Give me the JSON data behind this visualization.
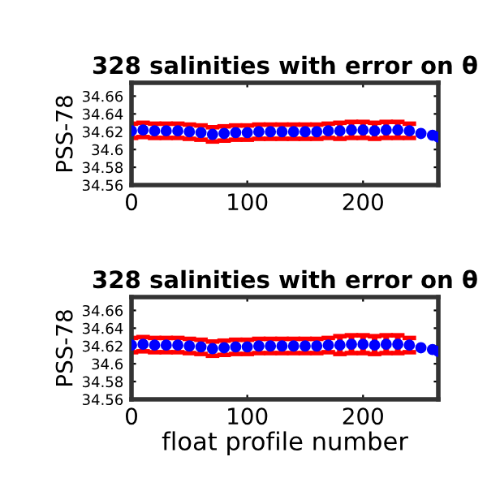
{
  "chart_data": [
    {
      "type": "scatter",
      "title": "328 salinities with error on θ",
      "ylabel": "PSS-78",
      "x": [
        0,
        10,
        20,
        30,
        40,
        50,
        60,
        70,
        80,
        90,
        100,
        110,
        120,
        130,
        140,
        150,
        160,
        170,
        180,
        190,
        200,
        210,
        220,
        230,
        240,
        250,
        260,
        265
      ],
      "series": [
        {
          "color": "#0000ff",
          "values": [
            34.621,
            34.622,
            34.621,
            34.621,
            34.621,
            34.62,
            34.619,
            34.617,
            34.618,
            34.619,
            34.619,
            34.62,
            34.62,
            34.62,
            34.62,
            34.62,
            34.62,
            34.621,
            34.621,
            34.622,
            34.622,
            34.621,
            34.622,
            34.622,
            34.621,
            34.618,
            34.616,
            34.614
          ],
          "errors": [
            0.008,
            0.008,
            0.008,
            0.008,
            0.008,
            0.008,
            0.008,
            0.008,
            0.008,
            0.008,
            0.008,
            0.008,
            0.008,
            0.008,
            0.008,
            0.008,
            0.008,
            0.008,
            0.009,
            0.009,
            0.009,
            0.009,
            0.009,
            0.009,
            0.008,
            null,
            null,
            null
          ]
        }
      ],
      "xlim": [
        0,
        265
      ],
      "xticks": [
        0,
        100,
        200
      ],
      "ylim": [
        34.56,
        34.675
      ],
      "yticks": [
        34.56,
        34.58,
        {
          "value": 34.6,
          "label": "34.6"
        },
        34.62,
        34.64,
        34.66
      ],
      "marker": "circle",
      "grid": false
    },
    {
      "type": "scatter",
      "title": "328 salinities with error on θ",
      "ylabel": "PSS-78",
      "xlabel": "float profile number",
      "x": [
        0,
        10,
        20,
        30,
        40,
        50,
        60,
        70,
        80,
        90,
        100,
        110,
        120,
        130,
        140,
        150,
        160,
        170,
        180,
        190,
        200,
        210,
        220,
        230,
        240,
        250,
        260,
        265
      ],
      "series": [
        {
          "color": "#0000ff",
          "values": [
            34.621,
            34.622,
            34.621,
            34.621,
            34.621,
            34.62,
            34.619,
            34.617,
            34.618,
            34.619,
            34.619,
            34.62,
            34.62,
            34.62,
            34.62,
            34.62,
            34.62,
            34.621,
            34.621,
            34.622,
            34.622,
            34.621,
            34.622,
            34.622,
            34.621,
            34.618,
            34.616,
            34.614
          ],
          "errors": [
            0.008,
            0.008,
            0.008,
            0.008,
            0.008,
            0.008,
            0.008,
            0.008,
            0.008,
            0.008,
            0.008,
            0.008,
            0.008,
            0.008,
            0.008,
            0.008,
            0.008,
            0.008,
            0.01,
            0.01,
            0.01,
            0.01,
            0.01,
            0.01,
            0.008,
            null,
            null,
            null
          ]
        }
      ],
      "xlim": [
        0,
        265
      ],
      "xticks": [
        0,
        100,
        200
      ],
      "ylim": [
        34.56,
        34.675
      ],
      "yticks": [
        34.56,
        34.58,
        {
          "value": 34.6,
          "label": "34.6"
        },
        34.62,
        34.64,
        34.66
      ],
      "marker": "circle",
      "grid": false
    }
  ]
}
